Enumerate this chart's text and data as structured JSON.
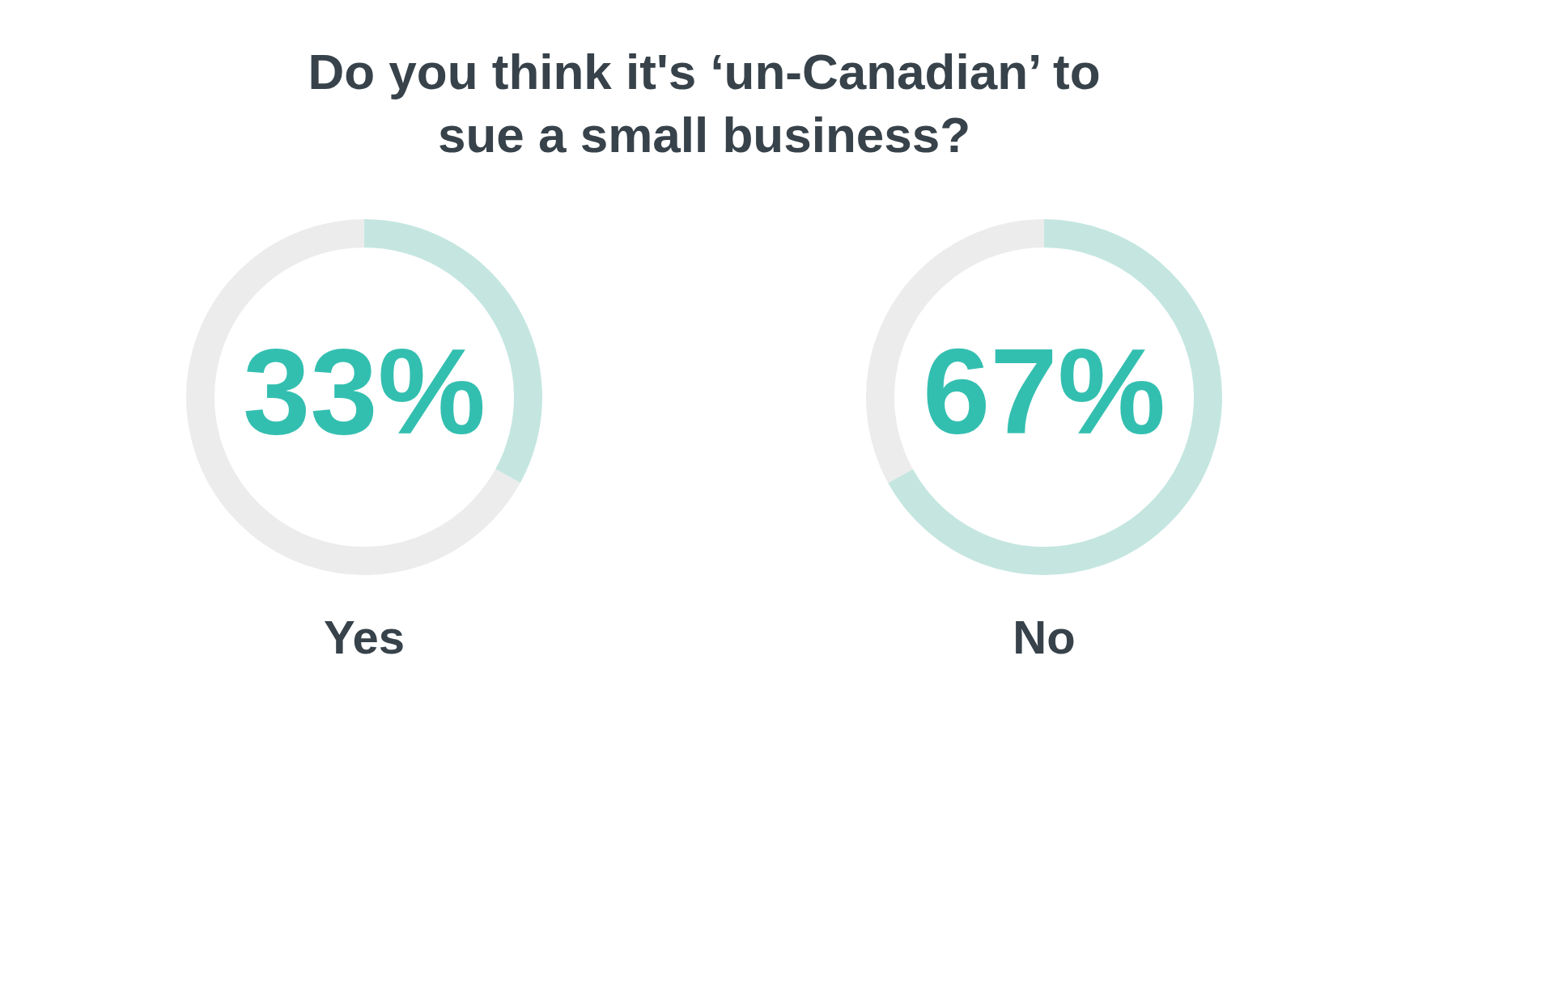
{
  "chart_data": [
    {
      "type": "donut",
      "title": "Do you think it's ‘un-Canadian’ to sue a small business?",
      "xlabel": "Yes",
      "categories": [
        null,
        null
      ],
      "values": [
        33,
        67
      ],
      "colors": [
        "#c5e6e0",
        "#ececec"
      ],
      "value_labels": [
        "33%",
        null
      ]
    },
    {
      "type": "donut",
      "xlabel": "No",
      "categories": [
        null,
        null
      ],
      "values": [
        67,
        33
      ],
      "colors": [
        "#c5e6e0",
        "#ececec"
      ],
      "value_labels": [
        "67%",
        null
      ]
    }
  ]
}
